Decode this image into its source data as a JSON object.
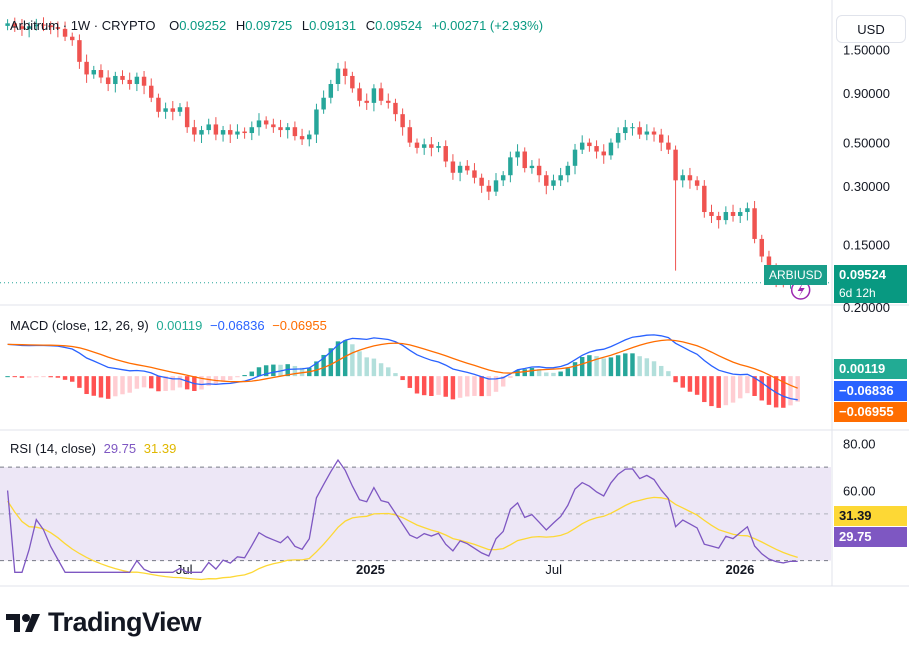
{
  "header": {
    "symbol_name": "Arbitrum",
    "interval": "1W",
    "exchange": "CRYPTO",
    "open_label": "O",
    "open": "0.09252",
    "high_label": "H",
    "high": "0.09725",
    "low_label": "L",
    "low": "0.09131",
    "close_label": "C",
    "close": "0.09524",
    "change": "+0.00271 (+2.93%)"
  },
  "currency_button": "USD",
  "price_tag": {
    "symbol": "ARBIUSD",
    "price": "0.09524",
    "countdown": "6d 12h"
  },
  "macd": {
    "title": "MACD (close, 12, 26, 9)",
    "histogram": "0.00119",
    "macd": "−0.06836",
    "signal": "−0.06955"
  },
  "rsi": {
    "title": "RSI (14, close)",
    "rsi": "29.75",
    "rsi_ma": "31.39"
  },
  "branding": "TradingView",
  "colors": {
    "up": "#26a69a",
    "down": "#ef5350",
    "macd_line": "#2962ff",
    "signal_line": "#ff6d00",
    "rsi_line": "#7e57c2",
    "rsi_ma": "#fdd835",
    "rsi_band": "#ede7f6"
  },
  "chart_data": [
    {
      "type": "candlestick",
      "title": "Arbitrum · 1W · CRYPTO",
      "y_scale": "log",
      "y_ticks": [
        "1.50000",
        "0.90000",
        "0.50000",
        "0.30000",
        "0.15000"
      ],
      "x_ticks": [
        "Jul",
        "2025",
        "Jul",
        "2026"
      ],
      "x_tick_dates": [
        "2024-07-01",
        "2025-01-01",
        "2025-07-01",
        "2026-01-01"
      ],
      "x_range": [
        "2024-01-01",
        "2026-04-01"
      ],
      "y_range": [
        0.075,
        2.4
      ],
      "last_price": 0.09524,
      "close": [
        2.05,
        1.98,
        1.92,
        1.98,
        2.02,
        2.0,
        1.96,
        1.92,
        1.75,
        1.68,
        1.3,
        1.12,
        1.18,
        1.08,
        1.0,
        1.1,
        1.05,
        1.0,
        1.09,
        0.98,
        0.85,
        0.72,
        0.75,
        0.72,
        0.76,
        0.6,
        0.55,
        0.58,
        0.62,
        0.55,
        0.58,
        0.55,
        0.57,
        0.56,
        0.6,
        0.65,
        0.62,
        0.6,
        0.58,
        0.6,
        0.54,
        0.52,
        0.55,
        0.74,
        0.85,
        1.0,
        1.2,
        1.1,
        0.95,
        0.82,
        0.8,
        0.95,
        0.82,
        0.8,
        0.7,
        0.6,
        0.5,
        0.47,
        0.49,
        0.47,
        0.48,
        0.4,
        0.35,
        0.38,
        0.36,
        0.33,
        0.3,
        0.28,
        0.32,
        0.34,
        0.42,
        0.45,
        0.37,
        0.38,
        0.34,
        0.3,
        0.32,
        0.34,
        0.38,
        0.46,
        0.5,
        0.48,
        0.45,
        0.43,
        0.5,
        0.56,
        0.6,
        0.6,
        0.55,
        0.57,
        0.55,
        0.5,
        0.46,
        0.32,
        0.34,
        0.32,
        0.3,
        0.22,
        0.21,
        0.2,
        0.22,
        0.21,
        0.22,
        0.23,
        0.16,
        0.13,
        0.11,
        0.1,
        0.095,
        0.096,
        0.0952
      ],
      "macd_histogram_range": [
        -0.15,
        0.2
      ],
      "macd_ticks": [
        "0.20000"
      ],
      "macd_last": {
        "histogram": 0.00119,
        "macd": -0.06836,
        "signal": -0.06955
      },
      "rsi_range": [
        20,
        85
      ],
      "rsi_ticks": [
        "80.00",
        "60.00"
      ],
      "rsi_bands": [
        70,
        30
      ],
      "rsi_last": {
        "rsi": 29.75,
        "ma": 31.39
      }
    }
  ]
}
